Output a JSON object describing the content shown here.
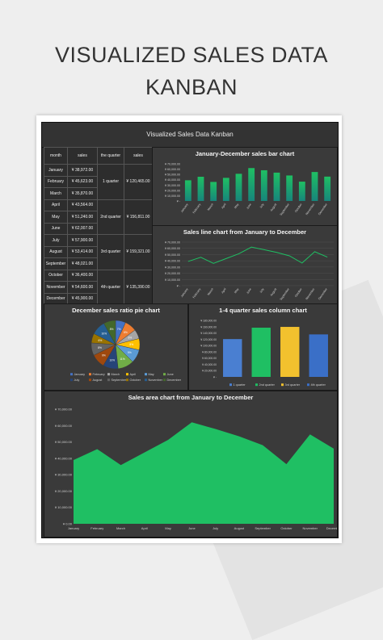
{
  "heading": {
    "line1": "VISUALIZED SALES DATA",
    "line2": "KANBAN"
  },
  "board_title": "Visualized Sales Data Kanban",
  "table": {
    "headers": [
      "month",
      "sales",
      "the quarter",
      "sales"
    ],
    "rows": [
      [
        "January",
        "¥ 38,972.00"
      ],
      [
        "February",
        "¥ 45,623.00"
      ],
      [
        "March",
        "¥ 35,870.00"
      ],
      [
        "April",
        "¥ 43,564.00"
      ],
      [
        "May",
        "¥ 51,240.00"
      ],
      [
        "June",
        "¥ 62,007.00"
      ],
      [
        "July",
        "¥ 57,900.00"
      ],
      [
        "August",
        "¥ 53,414.00"
      ],
      [
        "September",
        "¥ 48,021.00"
      ],
      [
        "October",
        "¥ 36,400.00"
      ],
      [
        "November",
        "¥ 54,600.00"
      ],
      [
        "December",
        "¥ 45,900.00"
      ]
    ],
    "quarters": [
      {
        "label": "1 quarter",
        "sales": "¥ 120,465.00"
      },
      {
        "label": "2nd quarter",
        "sales": "¥ 156,811.00"
      },
      {
        "label": "3rd quarter",
        "sales": "¥ 159,321.00"
      },
      {
        "label": "4th quarter",
        "sales": "¥ 135,390.00"
      }
    ]
  },
  "colors": {
    "green": "#1fbf63",
    "teal": "#17857c",
    "blue": "#4472c4",
    "gold": "#f2c12e",
    "dark": "#2d2d2d"
  },
  "chart_data": [
    {
      "type": "bar",
      "title": "January-December sales bar chart",
      "categories": [
        "January",
        "February",
        "March",
        "April",
        "May",
        "June",
        "July",
        "August",
        "September",
        "October",
        "November",
        "December"
      ],
      "values": [
        38972,
        45623,
        35870,
        43564,
        51240,
        62007,
        57900,
        53414,
        48021,
        36400,
        54600,
        45900
      ],
      "ylim": [
        0,
        70000
      ],
      "yticks": [
        "¥ -",
        "¥ 10,000.00",
        "¥ 20,000.00",
        "¥ 30,000.00",
        "¥ 40,000.00",
        "¥ 50,000.00",
        "¥ 60,000.00",
        "¥ 70,000.00"
      ]
    },
    {
      "type": "line",
      "title": "Sales line chart from January to December",
      "categories": [
        "January",
        "February",
        "March",
        "April",
        "May",
        "June",
        "July",
        "August",
        "September",
        "October",
        "November",
        "December"
      ],
      "values": [
        38972,
        45623,
        35870,
        43564,
        51240,
        62007,
        57900,
        53414,
        48021,
        36400,
        54600,
        45900
      ],
      "ylim": [
        0,
        70000
      ],
      "yticks": [
        "¥ -",
        "¥ 10,000.00",
        "¥ 20,000.00",
        "¥ 30,000.00",
        "¥ 40,000.00",
        "¥ 50,000.00",
        "¥ 60,000.00",
        "¥ 70,000.00"
      ],
      "grid": true
    },
    {
      "type": "pie",
      "title": "December sales ratio pie chart",
      "categories": [
        "January",
        "February",
        "March",
        "April",
        "May",
        "June",
        "July",
        "August",
        "September",
        "October",
        "November",
        "December"
      ],
      "values": [
        38972,
        45623,
        35870,
        43564,
        51240,
        62007,
        57900,
        53414,
        48021,
        36400,
        54600,
        45900
      ],
      "colors": [
        "#4472c4",
        "#ed7d31",
        "#a5a5a5",
        "#ffc000",
        "#5b9bd5",
        "#70ad47",
        "#264478",
        "#9e480e",
        "#636363",
        "#997300",
        "#255e91",
        "#43682b"
      ],
      "legend": "bottom"
    },
    {
      "type": "bar",
      "title": "1-4 quarter sales column chart",
      "categories": [
        "1 quarter",
        "2nd quarter",
        "3rd quarter",
        "4th quarter"
      ],
      "values": [
        120465,
        156811,
        159321,
        135390
      ],
      "colors": [
        "#4a7fd1",
        "#1fbf63",
        "#f2c12e",
        "#3a6fc7"
      ],
      "ylim": [
        0,
        180000
      ],
      "yticks": [
        "¥ -",
        "¥ 20,000.00",
        "¥ 40,000.00",
        "¥ 60,000.00",
        "¥ 80,000.00",
        "¥ 100,000.00",
        "¥ 120,000.00",
        "¥ 140,000.00",
        "¥ 160,000.00",
        "¥ 180,000.00"
      ],
      "legend": "bottom"
    },
    {
      "type": "area",
      "title": "Sales area chart from January to December",
      "categories": [
        "January",
        "February",
        "March",
        "April",
        "May",
        "June",
        "July",
        "August",
        "September",
        "October",
        "November",
        "December"
      ],
      "values": [
        38972,
        45623,
        35870,
        43564,
        51240,
        62007,
        57900,
        53414,
        48021,
        36400,
        54600,
        45900
      ],
      "ylim": [
        0,
        70000
      ],
      "yticks": [
        "¥ 0.00",
        "¥ 10,000.00",
        "¥ 20,000.00",
        "¥ 30,000.00",
        "¥ 40,000.00",
        "¥ 50,000.00",
        "¥ 60,000.00",
        "¥ 70,000.00"
      ]
    }
  ]
}
